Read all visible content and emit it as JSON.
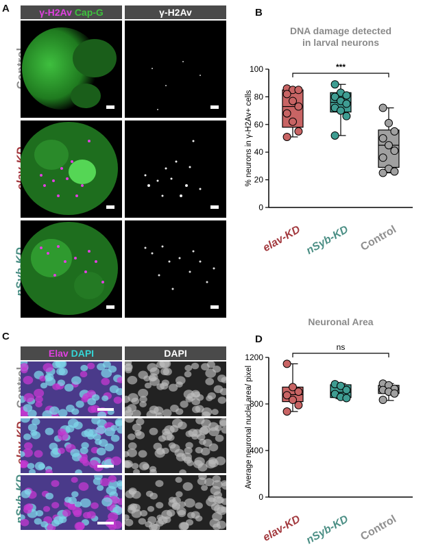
{
  "panel_letters": {
    "a": "A",
    "b": "B",
    "c": "C",
    "d": "D"
  },
  "panel_a": {
    "header_left_1": "γ-H2Av",
    "header_left_2": "Cap-G",
    "header_right": "γ-H2Av",
    "rows": [
      "Control",
      "elav-KD",
      "nSyb-KD"
    ]
  },
  "panel_c": {
    "header_left_1": "Elav",
    "header_left_2": "DAPI",
    "header_right": "DAPI",
    "rows": [
      "Control",
      "elav-KD",
      "nSyb-KD"
    ]
  },
  "colors": {
    "magenta": "#e040e0",
    "green": "#3ec23e",
    "cyan": "#35d6d6",
    "elav": "#a33a3f",
    "nsyb": "#4c8f85",
    "control": "#8f8f8f",
    "box_elav": "#c86464",
    "box_nsyb": "#3f9d92",
    "box_control": "#a0a0a0"
  },
  "chart_data": [
    {
      "type": "box",
      "title": "DNA damage detected in larval neurons",
      "title_lines": [
        "DNA damage detected",
        "in larval neurons"
      ],
      "ylabel": "% neurons in γ-H2Av+ cells",
      "ylim": [
        0,
        100
      ],
      "yticks": [
        0,
        20,
        40,
        60,
        80,
        100
      ],
      "categories": [
        "elav-KD",
        "nSyb-KD",
        "Control"
      ],
      "significance": {
        "from": "elav-KD",
        "to": "Control",
        "label": "***"
      },
      "series": [
        {
          "category": "elav-KD",
          "min": 51,
          "q1": 58,
          "median": 73,
          "q3": 85,
          "max": 86,
          "points": [
            86,
            85,
            85,
            82,
            77,
            73,
            68,
            62,
            55,
            51
          ]
        },
        {
          "category": "nSyb-KD",
          "min": 52,
          "q1": 69,
          "median": 76,
          "q3": 83,
          "max": 89,
          "points": [
            89,
            83,
            81,
            80,
            77,
            75,
            72,
            70,
            66,
            52
          ]
        },
        {
          "category": "Control",
          "min": 25,
          "q1": 29,
          "median": 45,
          "q3": 56,
          "max": 72,
          "points": [
            72,
            61,
            55,
            50,
            45,
            41,
            36,
            28,
            26,
            25
          ]
        }
      ]
    },
    {
      "type": "box",
      "title": "Neuronal Area",
      "ylabel": "Average neuronal nuclei area/ pixel",
      "ylim": [
        0,
        1200
      ],
      "yticks": [
        0,
        400,
        800,
        1200
      ],
      "categories": [
        "elav-KD",
        "nSyb-KD",
        "Control"
      ],
      "significance": {
        "from": "elav-KD",
        "to": "Control",
        "label": "ns"
      },
      "series": [
        {
          "category": "elav-KD",
          "min": 735,
          "q1": 820,
          "median": 880,
          "q3": 945,
          "max": 1145,
          "points": [
            1145,
            945,
            905,
            875,
            835,
            790,
            735
          ]
        },
        {
          "category": "nSyb-KD",
          "min": 845,
          "q1": 855,
          "median": 900,
          "q3": 965,
          "max": 975,
          "points": [
            970,
            955,
            920,
            885,
            860,
            850
          ]
        },
        {
          "category": "Control",
          "min": 830,
          "q1": 890,
          "median": 925,
          "q3": 960,
          "max": 975,
          "points": [
            975,
            960,
            930,
            920,
            905,
            890,
            835
          ]
        }
      ]
    }
  ]
}
